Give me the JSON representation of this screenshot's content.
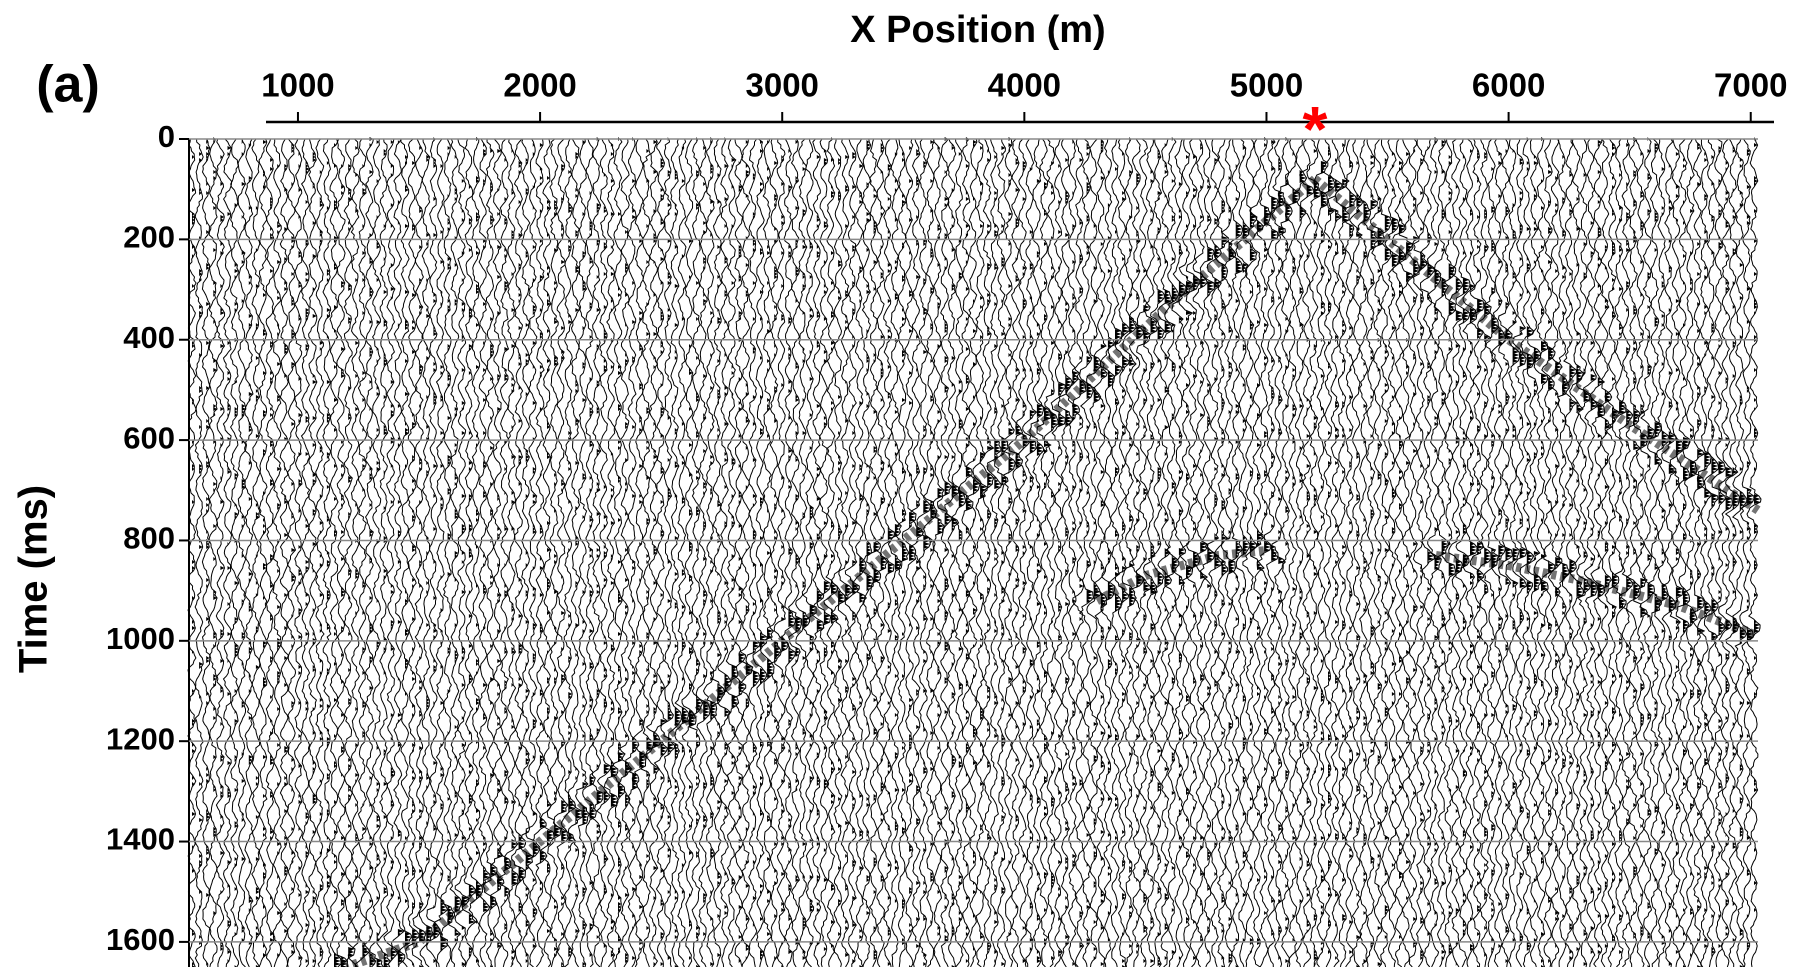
{
  "chart_data": {
    "type": "wiggle",
    "panel_label": "(a)",
    "x_label": "X Position (m)",
    "y_label": "Time (ms)",
    "xlim": [
      550,
      7030
    ],
    "xticks": [
      1000,
      2000,
      3000,
      4000,
      5000,
      6000,
      7000
    ],
    "ylim": [
      0,
      1650
    ],
    "yticks": [
      0,
      200,
      400,
      600,
      800,
      1000,
      1200,
      1400,
      1600
    ],
    "y_reversed": true,
    "grid": true,
    "trace_color": "#000000",
    "grid_color": "#888888",
    "source_marker": {
      "x": 5200,
      "symbol": "*",
      "color": "#ff0000"
    },
    "events": [
      {
        "x": [
          5200,
          4600,
          4000,
          3000,
          2000,
          1500,
          1200
        ],
        "y": [
          80,
          330,
          600,
          1000,
          1400,
          1600,
          1650
        ]
      },
      {
        "x": [
          5200,
          5600,
          6000,
          6500,
          7030
        ],
        "y": [
          80,
          240,
          400,
          570,
          740
        ]
      },
      {
        "x": [
          4300,
          4500,
          4800,
          5000
        ],
        "y": [
          920,
          870,
          830,
          820
        ]
      },
      {
        "x": [
          5700,
          6000,
          6300,
          6700,
          7030
        ],
        "y": [
          830,
          850,
          880,
          930,
          990
        ]
      }
    ]
  }
}
